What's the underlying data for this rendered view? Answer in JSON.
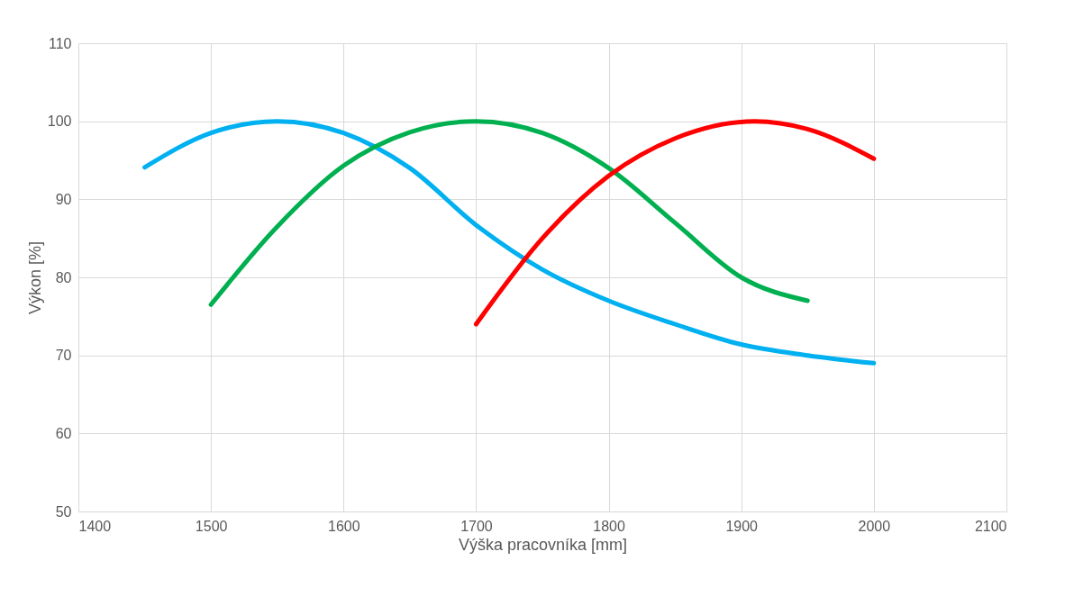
{
  "chart_data": {
    "type": "line",
    "xlabel": "Výška pracovníka [mm]",
    "ylabel": "Výkon [%]",
    "xlim": [
      1400,
      2100
    ],
    "xticks": [
      1400,
      1500,
      1600,
      1700,
      1800,
      1900,
      2000,
      2100
    ],
    "ylim": [
      50,
      110
    ],
    "yticks": [
      50,
      60,
      70,
      80,
      90,
      100,
      110
    ],
    "grid": true,
    "marker": "none",
    "line_style": "solid",
    "series": [
      {
        "color": "#00b0f0",
        "x": [
          1450,
          1500,
          1550,
          1600,
          1650,
          1700,
          1750,
          1800,
          1850,
          1900,
          1950,
          2000
        ],
        "values": [
          94.1,
          98.5,
          100,
          98.5,
          94,
          86.7,
          81,
          77,
          74,
          71.4,
          70,
          69
        ]
      },
      {
        "color": "#00b050",
        "x": [
          1500,
          1550,
          1600,
          1650,
          1700,
          1750,
          1800,
          1850,
          1900,
          1950
        ],
        "values": [
          76.5,
          86.5,
          94.3,
          98.6,
          100,
          98.5,
          94,
          87,
          80,
          77
        ]
      },
      {
        "color": "#ff0000",
        "x": [
          1700,
          1750,
          1800,
          1850,
          1910,
          1950,
          2000
        ],
        "values": [
          74,
          85,
          93,
          97.8,
          100,
          99,
          95.2
        ]
      }
    ]
  }
}
